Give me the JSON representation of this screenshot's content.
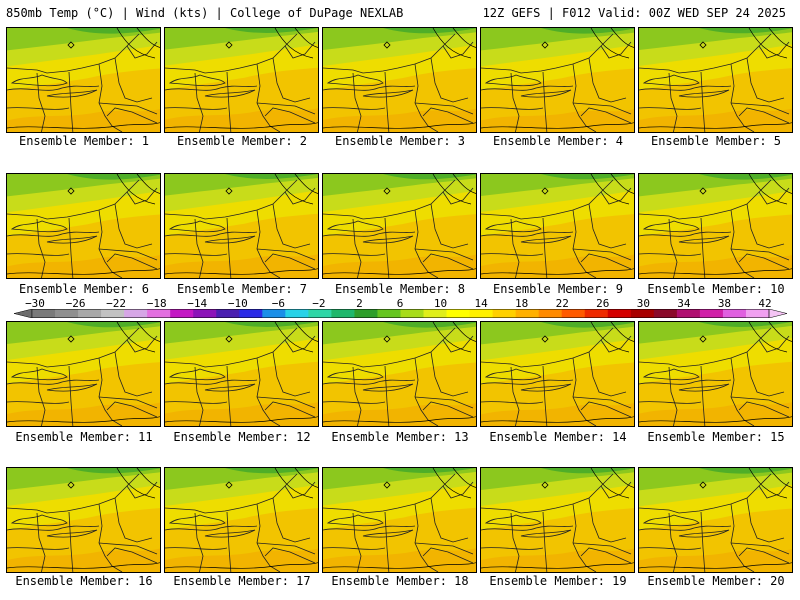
{
  "header": {
    "left": "850mb Temp (°C) | Wind (kts) | College of DuPage NEXLAB",
    "right": "12Z GEFS | F012 Valid: 00Z WED SEP 24 2025"
  },
  "member_prefix": "Ensemble Member: ",
  "members": [
    {
      "label": "Ensemble Member: 1",
      "warmth": 0.55
    },
    {
      "label": "Ensemble Member: 2",
      "warmth": 0.45
    },
    {
      "label": "Ensemble Member: 3",
      "warmth": 0.5
    },
    {
      "label": "Ensemble Member: 4",
      "warmth": 0.55
    },
    {
      "label": "Ensemble Member: 5",
      "warmth": 0.5
    },
    {
      "label": "Ensemble Member: 6",
      "warmth": 0.55
    },
    {
      "label": "Ensemble Member: 7",
      "warmth": 0.45
    },
    {
      "label": "Ensemble Member: 8",
      "warmth": 0.5
    },
    {
      "label": "Ensemble Member: 9",
      "warmth": 0.5
    },
    {
      "label": "Ensemble Member: 10",
      "warmth": 0.55
    },
    {
      "label": "Ensemble Member: 11",
      "warmth": 0.5
    },
    {
      "label": "Ensemble Member: 12",
      "warmth": 0.45
    },
    {
      "label": "Ensemble Member: 13",
      "warmth": 0.55
    },
    {
      "label": "Ensemble Member: 14",
      "warmth": 0.55
    },
    {
      "label": "Ensemble Member: 15",
      "warmth": 0.45
    },
    {
      "label": "Ensemble Member: 16",
      "warmth": 0.5
    },
    {
      "label": "Ensemble Member: 17",
      "warmth": 0.5
    },
    {
      "label": "Ensemble Member: 18",
      "warmth": 0.45
    },
    {
      "label": "Ensemble Member: 19",
      "warmth": 0.5
    },
    {
      "label": "Ensemble Member: 20",
      "warmth": 0.55
    }
  ],
  "colorbar": {
    "labels": [
      "−30",
      "−26",
      "−22",
      "−18",
      "−14",
      "−10",
      "−6",
      "−2",
      "2",
      "6",
      "10",
      "14",
      "18",
      "22",
      "26",
      "30",
      "34",
      "38",
      "42"
    ],
    "colors": [
      "#7a7a7a",
      "#8f8f8f",
      "#a8a8a8",
      "#c2c2c2",
      "#d6a6e6",
      "#e36fe0",
      "#c418c4",
      "#8c14b8",
      "#4b1fb0",
      "#2b2be6",
      "#1b8fe8",
      "#28d2e8",
      "#2fd6a6",
      "#1fb86b",
      "#2e9e2a",
      "#66c51f",
      "#a8dc1a",
      "#e0ee1a",
      "#ffff00",
      "#fff000",
      "#ffd000",
      "#ffb000",
      "#ff8a00",
      "#ff5a00",
      "#ee2a00",
      "#d40000",
      "#a80000",
      "#8a0a2a",
      "#b01070",
      "#d020a8",
      "#e060e0",
      "#f0a0f0"
    ]
  }
}
